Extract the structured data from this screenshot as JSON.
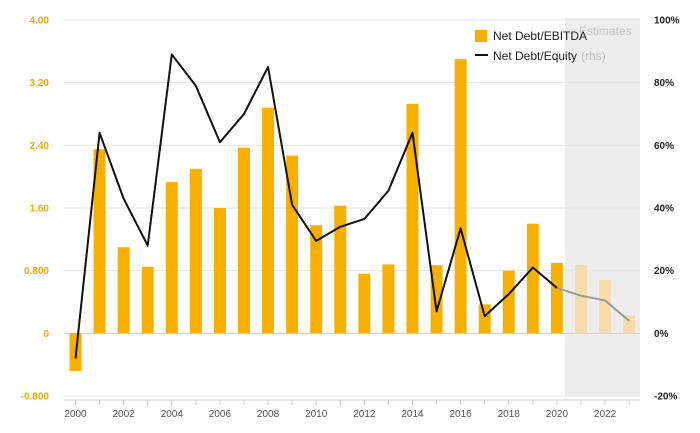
{
  "chart_data": {
    "type": "bar+line",
    "x": [
      2000,
      2001,
      2002,
      2003,
      2004,
      2005,
      2006,
      2007,
      2008,
      2009,
      2010,
      2011,
      2012,
      2013,
      2014,
      2015,
      2016,
      2017,
      2018,
      2019,
      2020,
      2021,
      2022,
      2023
    ],
    "x_tick_labels": [
      "2000",
      "2002",
      "2004",
      "2006",
      "2008",
      "2010",
      "2012",
      "2014",
      "2016",
      "2018",
      "2020",
      "2022"
    ],
    "y_left": {
      "range": [
        -0.8,
        4.0
      ],
      "ticks": [
        -0.8,
        0,
        0.8,
        1.6,
        2.4,
        3.2,
        4.0
      ],
      "tick_labels": [
        "-0.800",
        "0",
        "0.800",
        "1.60",
        "2.40",
        "3.20",
        "4.00"
      ]
    },
    "y_right": {
      "range": [
        -20,
        100
      ],
      "ticks": [
        -20,
        0,
        20,
        40,
        60,
        80,
        100
      ],
      "tick_labels": [
        "-20%",
        "0%",
        "20%",
        "40%",
        "60%",
        "80%",
        "100%"
      ]
    },
    "estimates": {
      "label": "Estimates",
      "from_year": 2020.5,
      "to_year": 2023.5
    },
    "grid": true,
    "legend_position": "top-right",
    "series": [
      {
        "name": "Net Debt/EBITDA",
        "type": "bar",
        "axis": "left",
        "color": "#f7b000",
        "estimate_color": "#f5dcaa",
        "values": [
          -0.48,
          2.35,
          1.1,
          0.85,
          1.93,
          2.1,
          1.6,
          2.37,
          2.88,
          2.27,
          1.38,
          1.63,
          0.76,
          0.88,
          2.93,
          0.87,
          3.5,
          0.37,
          0.8,
          1.4,
          0.9,
          0.87,
          0.68,
          0.23
        ]
      },
      {
        "name": "Net Debt/Equity",
        "name_suffix": "(rhs)",
        "type": "line",
        "axis": "right",
        "color": "#111111",
        "estimate_color": "#9a9a9a",
        "values": [
          -8,
          64,
          43,
          28,
          89,
          79,
          61,
          70,
          85,
          41,
          29.5,
          34,
          36.5,
          45.5,
          64,
          7,
          33.5,
          5.5,
          12.5,
          21,
          14.5,
          12,
          10.5,
          4
        ]
      }
    ]
  }
}
